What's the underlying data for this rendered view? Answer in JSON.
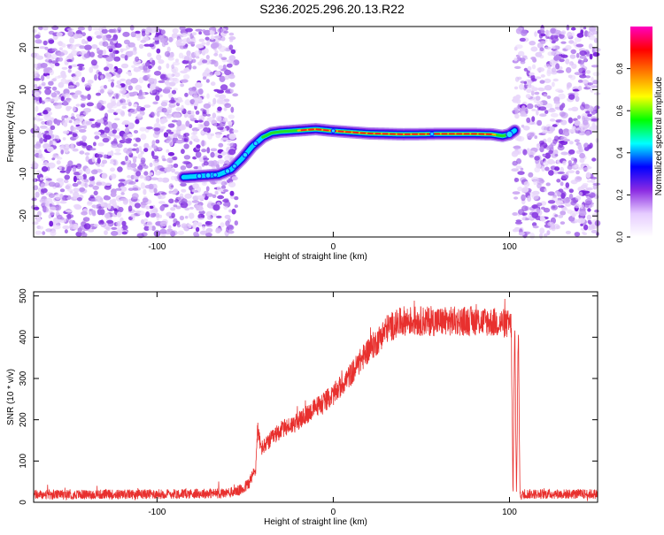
{
  "figure": {
    "title": "S236.2025.296.20.13.R22"
  },
  "chart_data": [
    {
      "type": "heatmap",
      "xlabel": "Height of straight line (km)",
      "ylabel": "Frequency (Hz)",
      "xlim": [
        -170,
        150
      ],
      "ylim": [
        -25,
        25
      ],
      "xticks": [
        -100,
        0,
        100
      ],
      "xtick_labels": [
        "-100",
        "0",
        "100"
      ],
      "yticks": [
        -20,
        -10,
        0,
        10,
        20
      ],
      "ytick_labels": [
        "-20",
        "-10",
        "0",
        "10",
        "20"
      ],
      "noise_regions": [
        [
          -170,
          -55
        ],
        [
          103,
          150
        ]
      ],
      "ridge": {
        "x": [
          -85,
          -75,
          -65,
          -58,
          -52,
          -46,
          -40,
          -35,
          -30,
          -20,
          -10,
          0,
          20,
          40,
          60,
          80,
          90,
          96,
          100,
          103
        ],
        "y": [
          -10.8,
          -10.5,
          -10.2,
          -9.0,
          -6.5,
          -3.5,
          -1.3,
          -0.3,
          0.0,
          0.3,
          0.6,
          0.2,
          -0.4,
          -0.6,
          -0.5,
          -0.5,
          -0.6,
          -1.0,
          -0.6,
          0.3
        ]
      },
      "colorbar": {
        "label": "Normalized spectral amplitude",
        "range": [
          0,
          1
        ],
        "ticks": [
          0.0,
          0.2,
          0.4,
          0.6,
          0.8
        ],
        "tick_labels": [
          "0.0",
          "0.2",
          "0.4",
          "0.6",
          "0.8"
        ],
        "colors": [
          "#ffffff",
          "#e6ccff",
          "#8b2be2",
          "#0000ff",
          "#00ffff",
          "#00ff00",
          "#ffff00",
          "#ff8000",
          "#ff0000",
          "#ff00c0"
        ]
      }
    },
    {
      "type": "line",
      "xlabel": "Height of straight line (km)",
      "ylabel": "SNR (10 * v/v)",
      "xlim": [
        -170,
        150
      ],
      "ylim": [
        0,
        510
      ],
      "xticks": [
        -100,
        0,
        100
      ],
      "xtick_labels": [
        "-100",
        "0",
        "100"
      ],
      "yticks": [
        0,
        100,
        200,
        300,
        400,
        500
      ],
      "ytick_labels": [
        "0",
        "100",
        "200",
        "300",
        "400",
        "500"
      ],
      "series": [
        {
          "name": "SNR",
          "color": "#e8302e",
          "x": [
            -170,
            -100,
            -60,
            -52,
            -48,
            -44,
            -43,
            -41,
            -38,
            -30,
            -20,
            -10,
            0,
            10,
            20,
            25,
            30,
            40,
            60,
            80,
            95,
            101,
            102,
            103,
            104,
            105,
            106,
            107,
            110,
            150
          ],
          "y": [
            18,
            20,
            22,
            30,
            45,
            80,
            180,
            130,
            140,
            175,
            195,
            230,
            260,
            310,
            370,
            390,
            420,
            440,
            438,
            440,
            435,
            430,
            10,
            440,
            10,
            430,
            15,
            18,
            20,
            20
          ]
        }
      ]
    }
  ]
}
